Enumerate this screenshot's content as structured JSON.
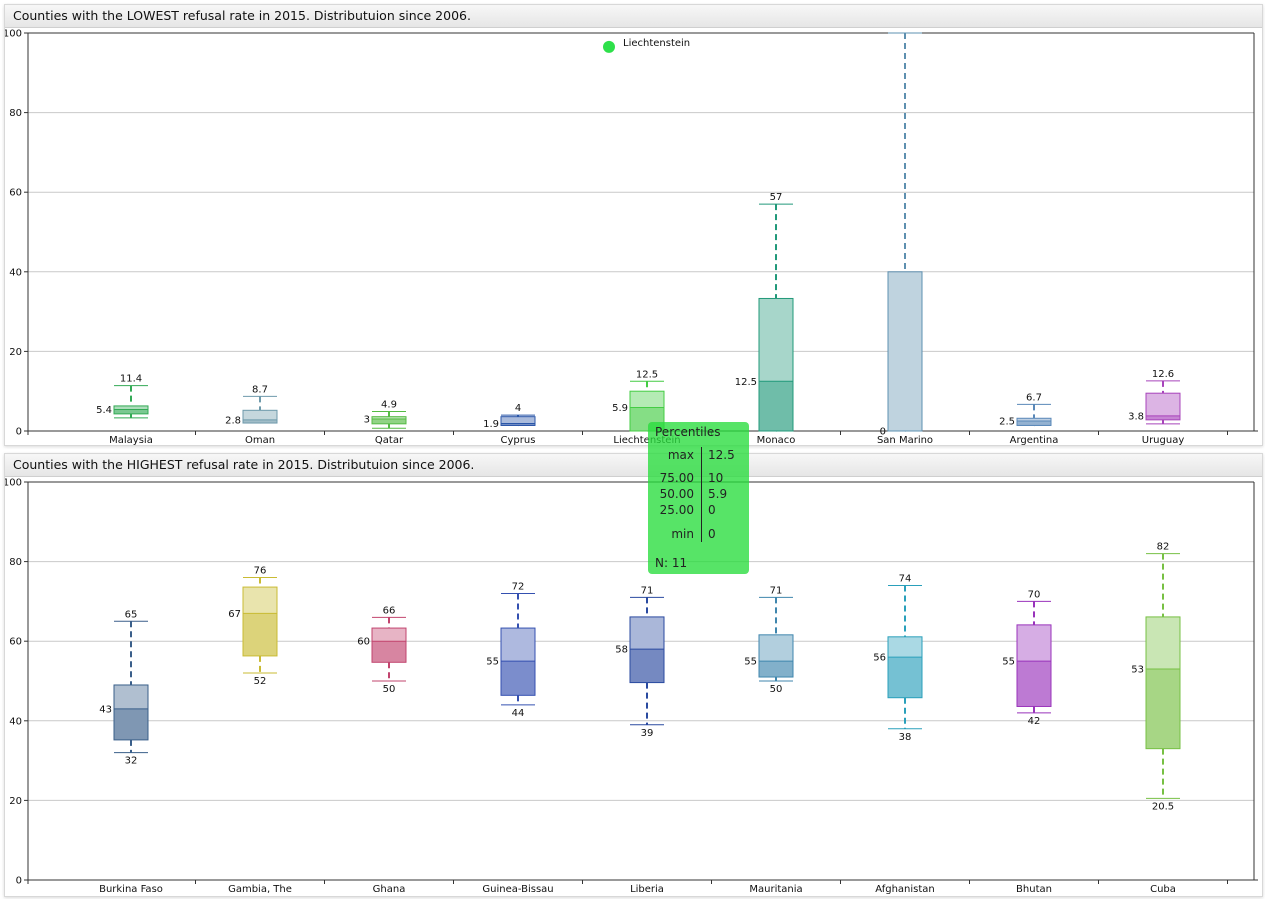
{
  "panels": [
    {
      "title": "Counties with the LOWEST refusal rate in 2015. Distributuion since 2006."
    },
    {
      "title": "Counties with the HIGHEST refusal rate in 2015. Distributuion since 2006."
    }
  ],
  "chart_data": [
    {
      "type": "boxplot",
      "title": "Counties with the LOWEST refusal rate in 2015. Distributuion since 2006.",
      "ylim": [
        0,
        100
      ],
      "yticks": [
        0,
        20,
        40,
        60,
        80,
        100
      ],
      "grid": true,
      "categories": [
        "Malaysia",
        "Oman",
        "Qatar",
        "Cyprus",
        "Liechtenstein",
        "Monaco",
        "San Marino",
        "Argentina",
        "Uruguay"
      ],
      "boxes": [
        {
          "category": "Malaysia",
          "min": 3.3,
          "q1": 4.3,
          "median": 5.4,
          "q3": 6.3,
          "max": 11.4,
          "max_label": "11.4",
          "median_label": "5.4",
          "color": "#33aa55"
        },
        {
          "category": "Oman",
          "min": 2.0,
          "q1": 2.0,
          "median": 2.8,
          "q3": 5.2,
          "max": 8.7,
          "max_label": "8.7",
          "median_label": "2.8",
          "color": "#6e9aab"
        },
        {
          "category": "Qatar",
          "min": 0.7,
          "q1": 1.8,
          "median": 3.0,
          "q3": 3.6,
          "max": 4.9,
          "max_label": "4.9",
          "median_label": "3",
          "color": "#55bb44"
        },
        {
          "category": "Cyprus",
          "min": 1.4,
          "q1": 1.4,
          "median": 1.9,
          "q3": 3.6,
          "max": 4.0,
          "max_label": "4",
          "median_label": "1.9",
          "color": "#2a56a8"
        },
        {
          "category": "Liechtenstein",
          "min": 0,
          "q1": 0,
          "median": 5.9,
          "q3": 10,
          "max": 12.5,
          "max_label": "12.5",
          "median_label": "5.9",
          "color": "#44cc44",
          "outliers": [
            96.5
          ],
          "outlier_label": "Liechtenstein"
        },
        {
          "category": "Monaco",
          "min": 0,
          "q1": 0,
          "median": 12.5,
          "q3": 33.3,
          "max": 57,
          "max_label": "57",
          "median_label": "12.5",
          "color": "#22997a"
        },
        {
          "category": "San Marino",
          "min": 0,
          "q1": 0,
          "median": 0,
          "q3": 40,
          "max": 100,
          "max_label": "",
          "median_label": "0",
          "color": "#5e90b0"
        },
        {
          "category": "Argentina",
          "min": 1.4,
          "q1": 1.4,
          "median": 2.5,
          "q3": 3.2,
          "max": 6.7,
          "max_label": "6.7",
          "median_label": "2.5",
          "color": "#5a88b8"
        },
        {
          "category": "Uruguay",
          "min": 1.8,
          "q1": 2.8,
          "median": 3.8,
          "q3": 9.5,
          "max": 12.6,
          "max_label": "12.6",
          "median_label": "3.8",
          "color": "#a844bb"
        }
      ]
    },
    {
      "type": "boxplot",
      "title": "Counties with the HIGHEST refusal rate in 2015. Distributuion since 2006.",
      "ylim": [
        0,
        100
      ],
      "yticks": [
        0,
        20,
        40,
        60,
        80,
        100
      ],
      "grid": true,
      "categories": [
        "Burkina Faso",
        "Gambia, The",
        "Ghana",
        "Guinea-Bissau",
        "Liberia",
        "Mauritania",
        "Afghanistan",
        "Bhutan",
        "Cuba"
      ],
      "boxes": [
        {
          "category": "Burkina Faso",
          "min": 32,
          "q1": 35.2,
          "median": 43,
          "q3": 49,
          "max": 65,
          "max_label": "65",
          "median_label": "43",
          "min_label": "32",
          "color": "#3a5f8a"
        },
        {
          "category": "Gambia, The",
          "min": 52,
          "q1": 56.3,
          "median": 67,
          "q3": 73.6,
          "max": 76,
          "max_label": "76",
          "median_label": "67",
          "min_label": "52",
          "color": "#c9bb33"
        },
        {
          "category": "Ghana",
          "min": 50,
          "q1": 54.7,
          "median": 60,
          "q3": 63.3,
          "max": 66,
          "max_label": "66",
          "median_label": "60",
          "min_label": "50",
          "color": "#c2446e"
        },
        {
          "category": "Guinea-Bissau",
          "min": 44,
          "q1": 46.4,
          "median": 55,
          "q3": 63.3,
          "max": 72,
          "max_label": "72",
          "median_label": "55",
          "min_label": "44",
          "color": "#3450b0"
        },
        {
          "category": "Liberia",
          "min": 39,
          "q1": 49.6,
          "median": 58,
          "q3": 66.1,
          "max": 71,
          "max_label": "71",
          "median_label": "58",
          "min_label": "39",
          "color": "#2a4aa0"
        },
        {
          "category": "Mauritania",
          "min": 50,
          "q1": 51,
          "median": 55,
          "q3": 61.6,
          "max": 71,
          "max_label": "71",
          "median_label": "55",
          "min_label": "50",
          "color": "#3f86ad"
        },
        {
          "category": "Afghanistan",
          "min": 38,
          "q1": 45.8,
          "median": 56,
          "q3": 61.1,
          "max": 74,
          "max_label": "74",
          "median_label": "56",
          "min_label": "38",
          "color": "#2aa0bb"
        },
        {
          "category": "Bhutan",
          "min": 42,
          "q1": 43.6,
          "median": 55,
          "q3": 64.1,
          "max": 70,
          "max_label": "70",
          "median_label": "55",
          "min_label": "42",
          "color": "#9933bb"
        },
        {
          "category": "Cuba",
          "min": 20.5,
          "q1": 33,
          "median": 53,
          "q3": 66.1,
          "max": 82,
          "max_label": "82",
          "median_label": "53",
          "min_label": "20.5",
          "color": "#77c044"
        }
      ]
    }
  ],
  "tooltip": {
    "title": "Percentiles",
    "rows": [
      {
        "k": "max",
        "v": "12.5"
      },
      {
        "k": "75.00",
        "v": "10"
      },
      {
        "k": "50.00",
        "v": "5.9"
      },
      {
        "k": "25.00",
        "v": "0"
      },
      {
        "k": "min",
        "v": "0"
      }
    ],
    "n_label": "N: 11",
    "color": "#28dc3c"
  }
}
